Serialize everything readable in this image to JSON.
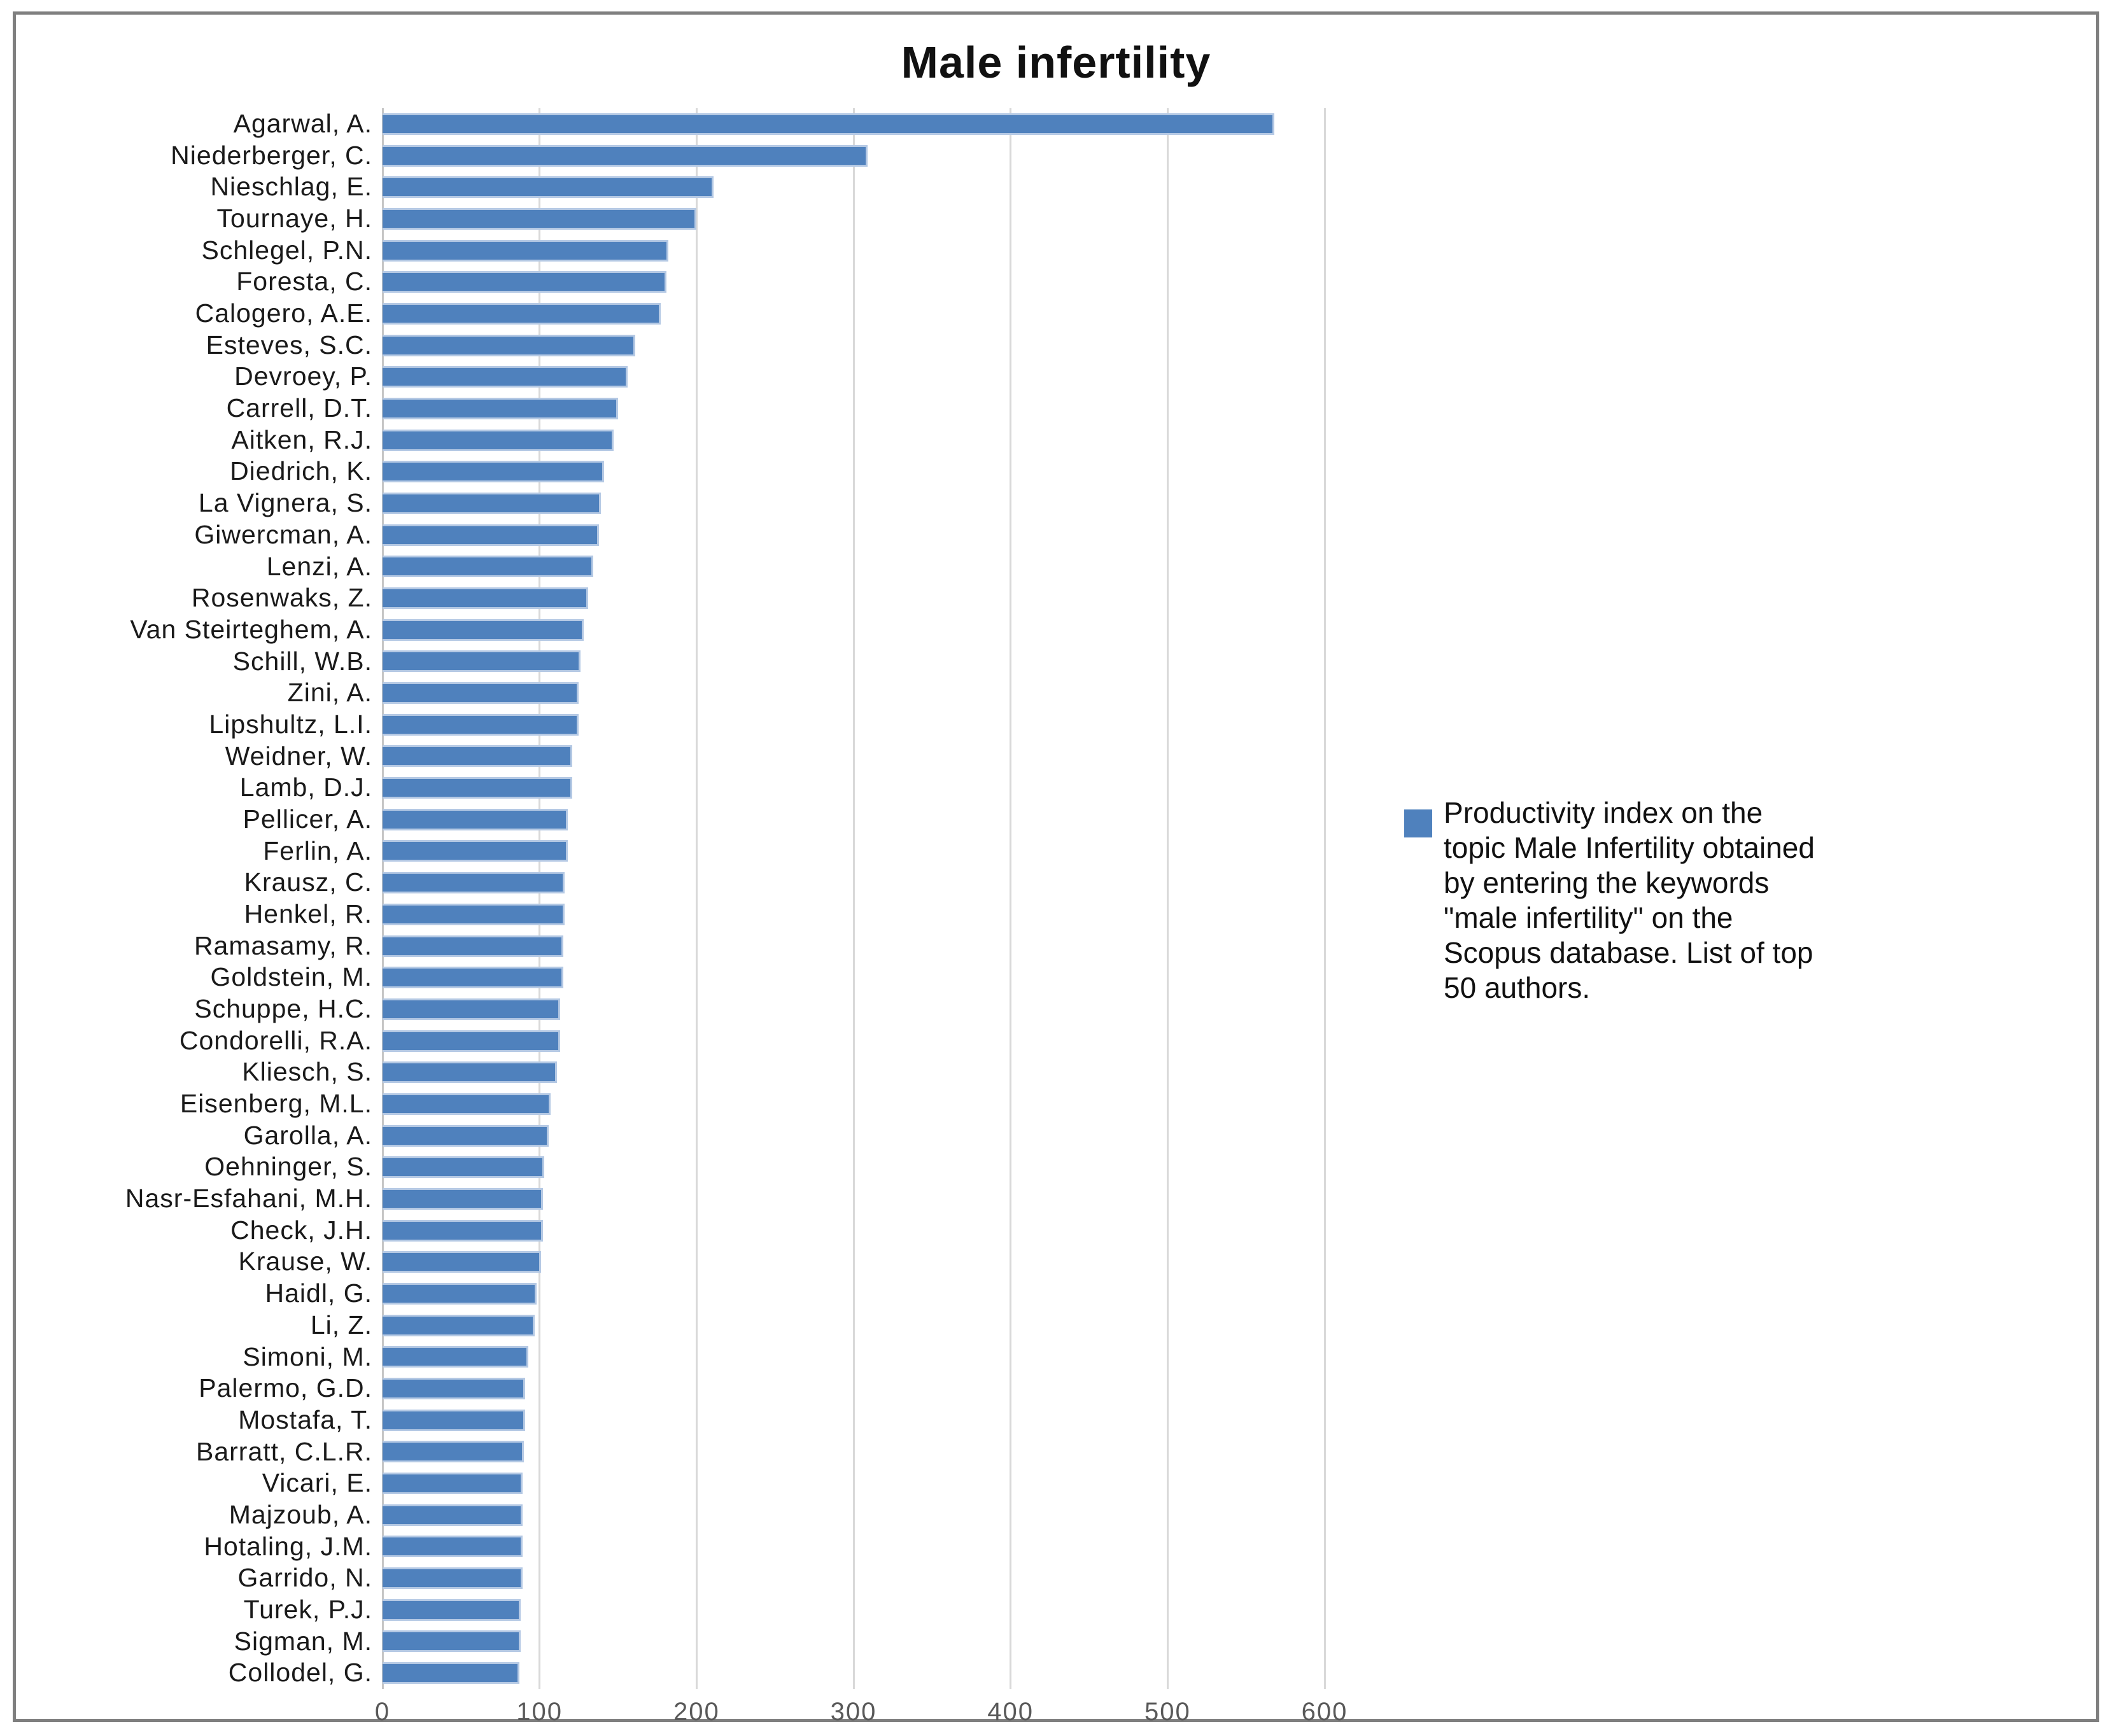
{
  "title": "Male infertility",
  "legend": {
    "marker_color": "#4F81BD",
    "lines": [
      "Productivity index on the",
      "topic Male Infertility obtained",
      "by entering the keywords",
      "\"male infertility\" on the",
      "Scopus database. List of top",
      "50 authors."
    ],
    "text": "Productivity index on the topic Male Infertility obtained by entering the keywords \"male infertility\" on the Scopus database. List of top 50 authors."
  },
  "chart_data": {
    "type": "bar",
    "orientation": "horizontal",
    "title": "Male infertility",
    "categories": [
      "Agarwal, A.",
      "Niederberger, C.",
      "Nieschlag, E.",
      "Tournaye, H.",
      "Schlegel, P.N.",
      "Foresta, C.",
      "Calogero, A.E.",
      "Esteves, S.C.",
      "Devroey, P.",
      "Carrell, D.T.",
      "Aitken, R.J.",
      "Diedrich, K.",
      "La Vignera, S.",
      "Giwercman, A.",
      "Lenzi, A.",
      "Rosenwaks, Z.",
      "Van Steirteghem, A.",
      "Schill, W.B.",
      "Zini, A.",
      "Lipshultz, L.I.",
      "Weidner, W.",
      "Lamb, D.J.",
      "Pellicer, A.",
      "Ferlin, A.",
      "Krausz, C.",
      "Henkel, R.",
      "Ramasamy, R.",
      "Goldstein, M.",
      "Schuppe, H.C.",
      "Condorelli, R.A.",
      "Kliesch, S.",
      "Eisenberg, M.L.",
      "Garolla, A.",
      "Oehninger, S.",
      "Nasr-Esfahani, M.H.",
      "Check, J.H.",
      "Krause, W.",
      "Haidl, G.",
      "Li, Z.",
      "Simoni, M.",
      "Palermo, G.D.",
      "Mostafa, T.",
      "Barratt, C.L.R.",
      "Vicari, E.",
      "Majzoub, A.",
      "Hotaling, J.M.",
      "Garrido, N.",
      "Turek, P.J.",
      "Sigman, M.",
      "Collodel, G."
    ],
    "values": [
      568,
      309,
      211,
      200,
      182,
      181,
      177,
      161,
      156,
      150,
      147,
      141,
      139,
      138,
      134,
      131,
      128,
      126,
      125,
      125,
      121,
      121,
      118,
      118,
      116,
      116,
      115,
      115,
      113,
      113,
      111,
      107,
      106,
      103,
      102,
      102,
      101,
      98,
      97,
      93,
      91,
      91,
      90,
      89,
      89,
      89,
      89,
      88,
      88,
      87
    ],
    "xlabel": "",
    "ylabel": "",
    "xlim": [
      0,
      600
    ],
    "xticks": [
      0,
      100,
      200,
      300,
      400,
      500,
      600
    ],
    "grid": true,
    "legend_position": "right",
    "bar_color": "#4F81BD",
    "bar_edge_color": "#B5C9E4",
    "gridline_color": "#D9D9D9",
    "frame_color": "#7F7F7F",
    "legend_text": "Productivity index on the topic Male Infertility obtained by entering the keywords \"male infertility\" on the Scopus database. List of top 50 authors."
  }
}
